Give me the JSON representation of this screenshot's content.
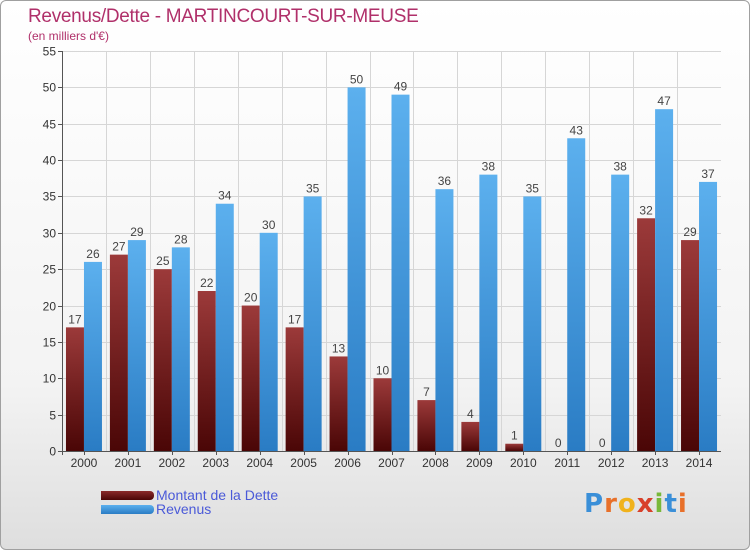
{
  "header": {
    "title": "Revenus/Dette - MARTINCOURT-SUR-MEUSE",
    "subtitle": "(en milliers d'€)"
  },
  "legend": {
    "items": [
      {
        "label": "Montant de la Dette",
        "color": "#6b1a1a"
      },
      {
        "label": "Revenus",
        "color": "#3a94dc"
      }
    ]
  },
  "logo": {
    "text": "Proxiti"
  },
  "chart_data": {
    "type": "bar",
    "title": "Revenus/Dette - MARTINCOURT-SUR-MEUSE",
    "ylabel": "(en milliers d'€)",
    "xlabel": "",
    "categories": [
      "2000",
      "2001",
      "2002",
      "2003",
      "2004",
      "2005",
      "2006",
      "2007",
      "2008",
      "2009",
      "2010",
      "2011",
      "2012",
      "2013",
      "2014"
    ],
    "series": [
      {
        "name": "Montant de la Dette",
        "color": "#6b1a1a",
        "values": [
          17,
          27,
          25,
          22,
          20,
          17,
          13,
          10,
          7,
          4,
          1,
          0,
          0,
          32,
          29
        ]
      },
      {
        "name": "Revenus",
        "color": "#3a94dc",
        "values": [
          26,
          29,
          28,
          34,
          30,
          35,
          50,
          49,
          36,
          38,
          35,
          43,
          38,
          47,
          37
        ]
      }
    ],
    "ylim": [
      0,
      55
    ],
    "yticks": [
      0,
      5,
      10,
      15,
      20,
      25,
      30,
      35,
      40,
      45,
      50,
      55
    ],
    "grid": true,
    "legend_position": "bottom-left"
  }
}
